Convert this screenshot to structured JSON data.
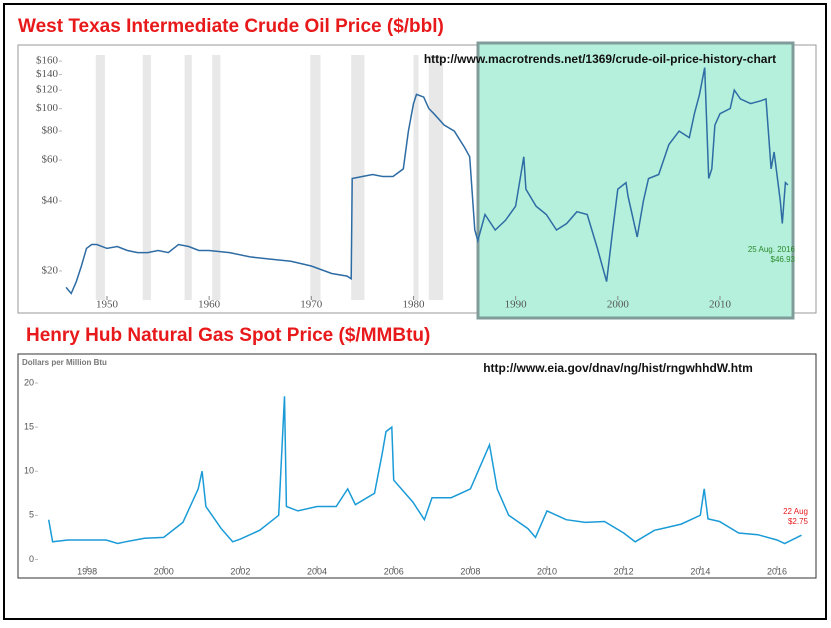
{
  "chart_data": [
    {
      "type": "line",
      "title": "West Texas Intermediate Crude Oil Price ($/bbl)",
      "source": "http://www.macrotrends.net/1369/crude-oil-price-history-chart",
      "date_label": "25 Aug. 2016",
      "price_label": "$46.93",
      "log_scale": true,
      "grid": false,
      "color": "#2e6ca4",
      "xlim": [
        1945.5,
        2017
      ],
      "xticks": [
        1950,
        1960,
        1970,
        1980,
        1990,
        2000,
        2010
      ],
      "ylim": [
        15,
        170
      ],
      "yticks": [
        {
          "value": 20,
          "label": "$20"
        },
        {
          "value": 40,
          "label": "$40"
        },
        {
          "value": 60,
          "label": "$60"
        },
        {
          "value": 80,
          "label": "$80"
        },
        {
          "value": 100,
          "label": "$100"
        },
        {
          "value": 120,
          "label": "$120"
        },
        {
          "value": 140,
          "label": "$140"
        },
        {
          "value": 160,
          "label": "$160"
        }
      ],
      "shaded_periods": [
        [
          1948.9,
          1949.8
        ],
        [
          1953.5,
          1954.3
        ],
        [
          1957.6,
          1958.3
        ],
        [
          1960.3,
          1961.1
        ],
        [
          1969.9,
          1970.9
        ],
        [
          1973.9,
          1975.2
        ],
        [
          1980.0,
          1980.5
        ],
        [
          1981.5,
          1982.9
        ],
        [
          1990.5,
          1991.2
        ],
        [
          2001.2,
          2001.9
        ],
        [
          2007.9,
          2009.5
        ]
      ],
      "x": [
        1946.0,
        1946.5,
        1947.0,
        1947.5,
        1948.0,
        1948.5,
        1949.0,
        1950.0,
        1951.0,
        1952.0,
        1953.0,
        1954.0,
        1955.0,
        1956.0,
        1957.0,
        1958.0,
        1959.0,
        1960.0,
        1962.0,
        1964.0,
        1966.0,
        1968.0,
        1970.0,
        1972.0,
        1973.5,
        1973.9,
        1974.0,
        1975.0,
        1976.0,
        1977.0,
        1978.0,
        1979.0,
        1979.5,
        1980.0,
        1980.3,
        1981.0,
        1981.5,
        1982.0,
        1983.0,
        1984.0,
        1985.0,
        1985.5,
        1986.0,
        1986.3,
        1987.0,
        1988.0,
        1989.0,
        1990.0,
        1990.8,
        1991.0,
        1992.0,
        1993.0,
        1994.0,
        1995.0,
        1996.0,
        1997.0,
        1998.0,
        1998.9,
        1999.5,
        2000.0,
        2000.8,
        2001.0,
        2001.9,
        2002.5,
        2003.0,
        2004.0,
        2005.0,
        2006.0,
        2007.0,
        2007.5,
        2008.0,
        2008.5,
        2008.9,
        2009.2,
        2009.5,
        2010.0,
        2011.0,
        2011.4,
        2012.0,
        2013.0,
        2014.0,
        2014.5,
        2015.0,
        2015.3,
        2015.9,
        2016.1,
        2016.4,
        2016.65
      ],
      "values": [
        17,
        16,
        18,
        21,
        25,
        26,
        26,
        25,
        25.5,
        24.5,
        24,
        24,
        24.5,
        24,
        26,
        25.5,
        24.5,
        24.5,
        24,
        23,
        22.5,
        22,
        21,
        19.5,
        19,
        18.5,
        50,
        51,
        52,
        51,
        51,
        55,
        80,
        105,
        115,
        112,
        100,
        95,
        85,
        80,
        68,
        62,
        30,
        27,
        35,
        30,
        33,
        38,
        62,
        45,
        38,
        35,
        30,
        32,
        36,
        35,
        25,
        18,
        30,
        45,
        48,
        42,
        28,
        40,
        50,
        52,
        70,
        80,
        75,
        95,
        115,
        150,
        50,
        55,
        85,
        95,
        100,
        120,
        110,
        105,
        108,
        110,
        55,
        65,
        40,
        32,
        48,
        46.93
      ]
    },
    {
      "type": "line",
      "title": "Henry Hub Natural Gas Spot Price ($/MMBtu)",
      "ylabel": "Dollars per Million Btu",
      "source": "http://www.eia.gov/dnav/ng/hist/rngwhhdW.htm",
      "date_label": "22 Aug",
      "price_label": "$2.75",
      "log_scale": false,
      "grid": false,
      "color": "#1a9bd7",
      "xlim": [
        1996.85,
        2016.9
      ],
      "xticks": [
        1998,
        2000,
        2002,
        2004,
        2006,
        2008,
        2010,
        2012,
        2014,
        2016
      ],
      "ylim": [
        -1.2,
        20.8
      ],
      "yticks": [
        0,
        5,
        10,
        15,
        20
      ],
      "x": [
        1997.0,
        1997.1,
        1997.5,
        1998.0,
        1998.5,
        1998.8,
        1999.0,
        1999.5,
        2000.0,
        2000.5,
        2000.9,
        2001.0,
        2001.1,
        2001.5,
        2001.8,
        2002.0,
        2002.5,
        2003.0,
        2003.15,
        2003.2,
        2003.5,
        2004.0,
        2004.5,
        2004.8,
        2005.0,
        2005.5,
        2005.7,
        2005.8,
        2005.95,
        2006.0,
        2006.5,
        2006.8,
        2007.0,
        2007.5,
        2008.0,
        2008.5,
        2008.7,
        2009.0,
        2009.5,
        2009.7,
        2010.0,
        2010.5,
        2011.0,
        2011.5,
        2012.0,
        2012.3,
        2012.8,
        2013.0,
        2013.5,
        2014.0,
        2014.1,
        2014.2,
        2014.5,
        2015.0,
        2015.5,
        2016.0,
        2016.2,
        2016.64
      ],
      "values": [
        4.5,
        2,
        2.2,
        2.2,
        2.2,
        1.8,
        2,
        2.4,
        2.5,
        4.2,
        8,
        10,
        6,
        3.5,
        2,
        2.3,
        3.3,
        5,
        18.5,
        6,
        5.5,
        6,
        6,
        8,
        6.2,
        7.5,
        12,
        14.5,
        15,
        9,
        6.5,
        4.5,
        7,
        7,
        8,
        13,
        8,
        5,
        3.5,
        2.5,
        5.5,
        4.5,
        4.2,
        4.3,
        3,
        2,
        3.3,
        3.5,
        4,
        5,
        8,
        4.6,
        4.3,
        3,
        2.8,
        2.2,
        1.8,
        2.75
      ]
    }
  ]
}
